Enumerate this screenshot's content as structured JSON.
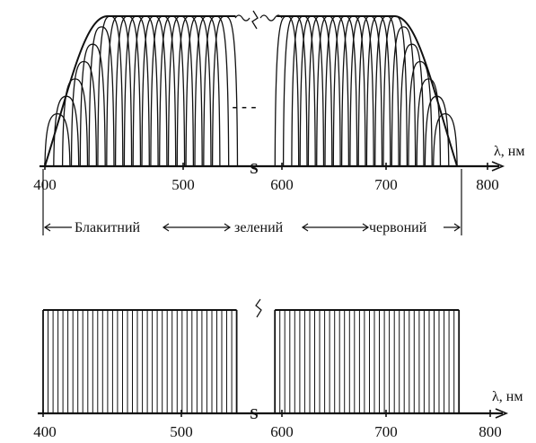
{
  "chart_data": [
    {
      "type": "line",
      "description_units": "wavelength in nm; overlapping narrow-band profiles with flat tops",
      "x_ticks": [
        400,
        500,
        600,
        700,
        800
      ],
      "x_unit_label": "λ, нм",
      "xlim": [
        400,
        800
      ],
      "gap_symbol": "S",
      "gap_dash": "- - -",
      "bands": {
        "left": {
          "start": 400,
          "end": 555,
          "count": 20
        },
        "right": {
          "start": 593,
          "end": 770,
          "count": 20
        }
      },
      "ranges": [
        {
          "label": "Блакитний",
          "from": 400,
          "to": 555
        },
        {
          "label": "зелений",
          "from": 555,
          "to": 640
        },
        {
          "label": "червоний",
          "from": 640,
          "to": 770
        }
      ]
    },
    {
      "type": "bar",
      "x_ticks": [
        400,
        500,
        600,
        700,
        800
      ],
      "x_unit_label": "λ, нм",
      "xlim": [
        400,
        800
      ],
      "gap_symbol": "S",
      "bands": {
        "left": {
          "start": 400,
          "end": 555,
          "count": 39
        },
        "right": {
          "start": 593,
          "end": 770,
          "count": 37
        }
      }
    }
  ],
  "colors": {
    "ink": "#111111",
    "background": "#ffffff"
  }
}
